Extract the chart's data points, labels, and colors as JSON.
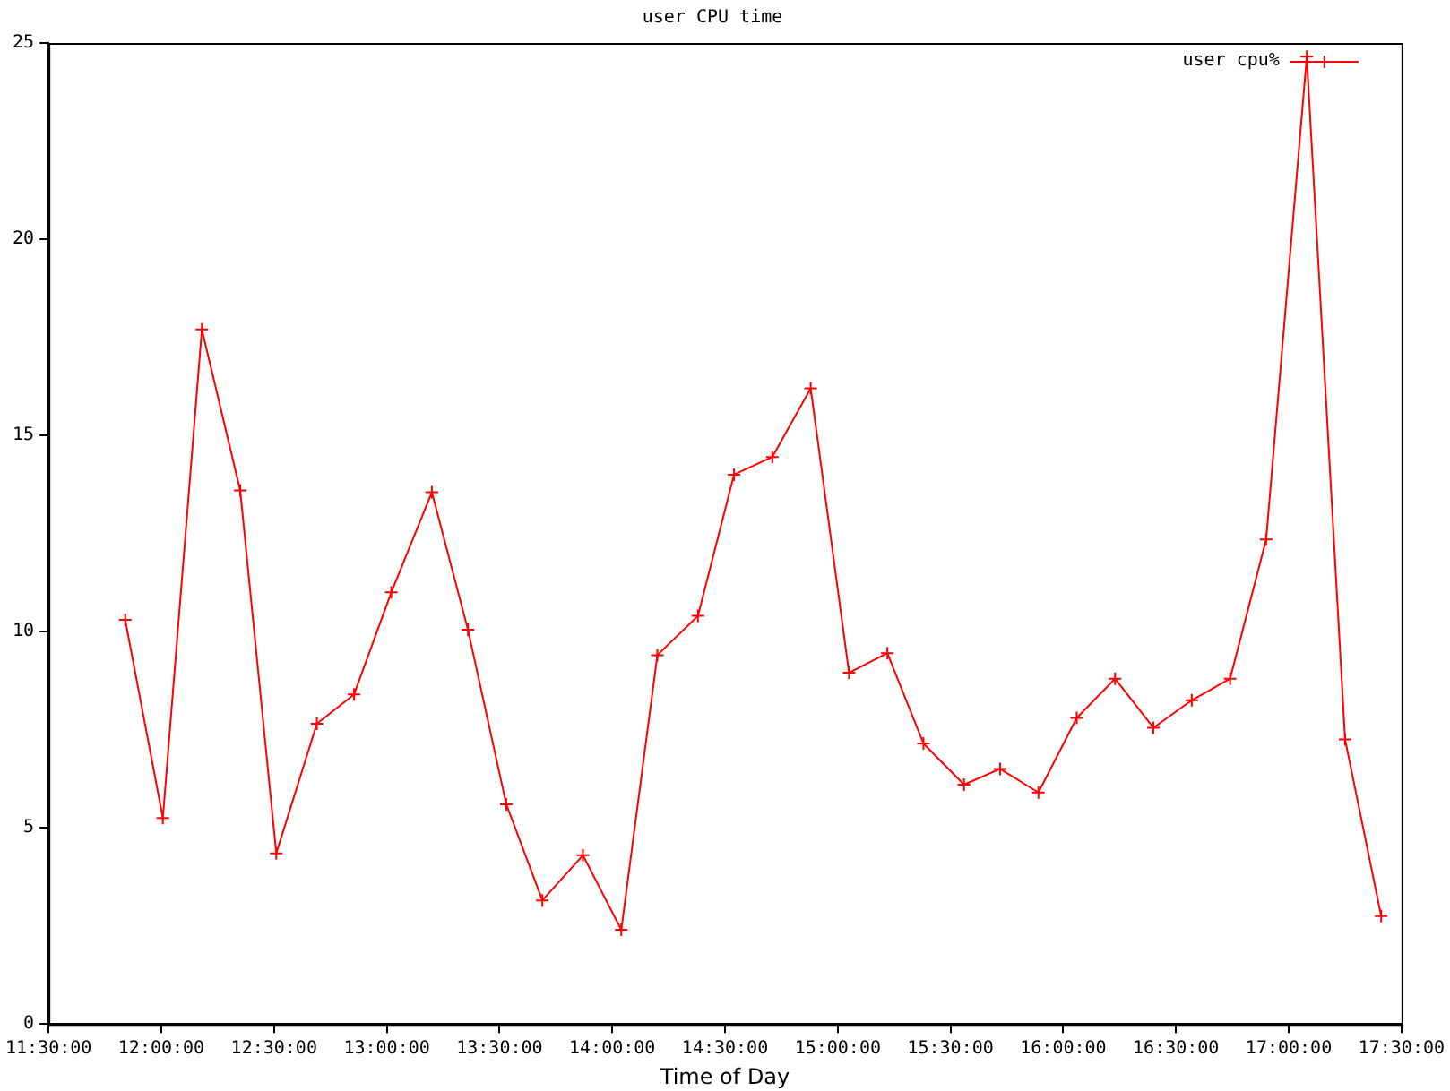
{
  "chart_data": {
    "type": "line",
    "title": "user CPU time",
    "xlabel": "Time of Day",
    "x": [
      11.84,
      12.007,
      12.18,
      12.35,
      12.51,
      12.69,
      12.855,
      13.02,
      13.2,
      13.36,
      13.53,
      13.69,
      13.87,
      14.04,
      14.2,
      14.38,
      14.54,
      14.71,
      14.88,
      15.05,
      15.22,
      15.38,
      15.56,
      15.72,
      15.89,
      16.06,
      16.23,
      16.4,
      16.57,
      16.74,
      16.9,
      17.08,
      17.25,
      17.41
    ],
    "series": [
      {
        "name": "user cpu%",
        "color": "#ff0000",
        "values": [
          10.3,
          5.25,
          17.7,
          13.6,
          4.35,
          7.65,
          8.4,
          11.0,
          13.55,
          10.05,
          5.6,
          3.15,
          4.3,
          2.4,
          9.4,
          10.4,
          14.0,
          14.45,
          16.2,
          8.95,
          9.45,
          7.15,
          6.1,
          6.5,
          5.9,
          7.8,
          8.8,
          7.55,
          8.25,
          8.8,
          12.35,
          24.65,
          7.25,
          2.75
        ]
      }
    ],
    "xlim": [
      11.5,
      17.5
    ],
    "xticks": [
      {
        "value": 11.5,
        "label": "11:30:00"
      },
      {
        "value": 12,
        "label": "12:00:00"
      },
      {
        "value": 12.5,
        "label": "12:30:00"
      },
      {
        "value": 13,
        "label": "13:00:00"
      },
      {
        "value": 13.5,
        "label": "13:30:00"
      },
      {
        "value": 14,
        "label": "14:00:00"
      },
      {
        "value": 14.5,
        "label": "14:30:00"
      },
      {
        "value": 15,
        "label": "15:00:00"
      },
      {
        "value": 15.5,
        "label": "15:30:00"
      },
      {
        "value": 16,
        "label": "16:00:00"
      },
      {
        "value": 16.5,
        "label": "16:30:00"
      },
      {
        "value": 17,
        "label": "17:00:00"
      },
      {
        "value": 17.5,
        "label": "17:30:00"
      }
    ],
    "ylim": [
      0,
      25
    ],
    "yticks": [
      0,
      5,
      10,
      15,
      20,
      25
    ],
    "grid": false,
    "legend": "top right",
    "marker": "cross",
    "line_style": "solid"
  }
}
